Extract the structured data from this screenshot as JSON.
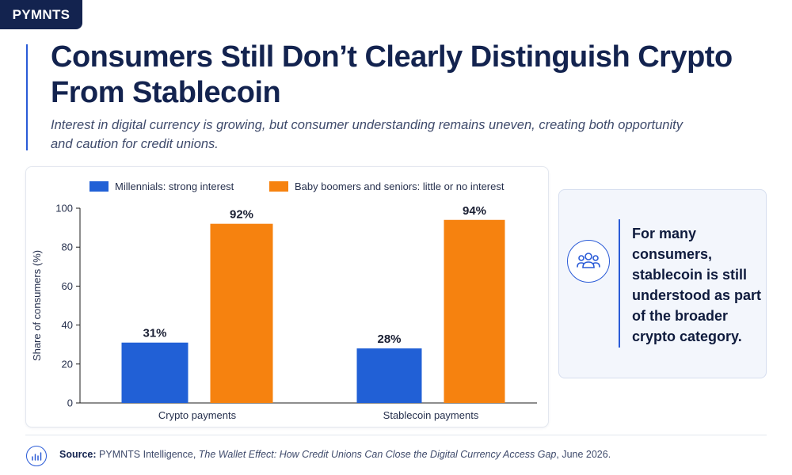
{
  "brand": "PYMNTS",
  "title": "Consumers Still Don’t Clearly Distinguish Crypto From Stablecoin",
  "subtitle": "Interest in digital currency is growing, but consumer understanding remains uneven, creating both opportunity and caution for credit unions.",
  "callout": {
    "text": "For many consumers, stablecoin is still understood as part of the broader crypto category.",
    "icon": "people-group-icon"
  },
  "footer": {
    "label": "Source:",
    "prefix": "PYMNTS Intelligence,",
    "report": "The Wallet Effect: How Credit Unions Can Close the Digital Currency Access Gap",
    "suffix": ", June 2026.",
    "icon": "bar-chart-icon"
  },
  "colors": {
    "navy": "#13234f",
    "accent_blue": "#2a5bd7",
    "millennials": "#2160d6",
    "boomers": "#f6820f"
  },
  "chart_data": {
    "type": "bar",
    "categories": [
      "Crypto payments",
      "Stablecoin payments"
    ],
    "series": [
      {
        "name": "Millennials: strong interest",
        "values": [
          31,
          28
        ],
        "color": "#2160d6"
      },
      {
        "name": "Baby boomers and seniors: little or no interest",
        "values": [
          92,
          94
        ],
        "color": "#f6820f"
      }
    ],
    "data_labels": [
      [
        "31%",
        "28%"
      ],
      [
        "92%",
        "94%"
      ]
    ],
    "ylabel": "Share of consumers (%)",
    "xlabel": "",
    "ylim": [
      0,
      100
    ],
    "yticks": [
      0,
      20,
      40,
      60,
      80,
      100
    ],
    "legend": "top",
    "grid": false
  }
}
